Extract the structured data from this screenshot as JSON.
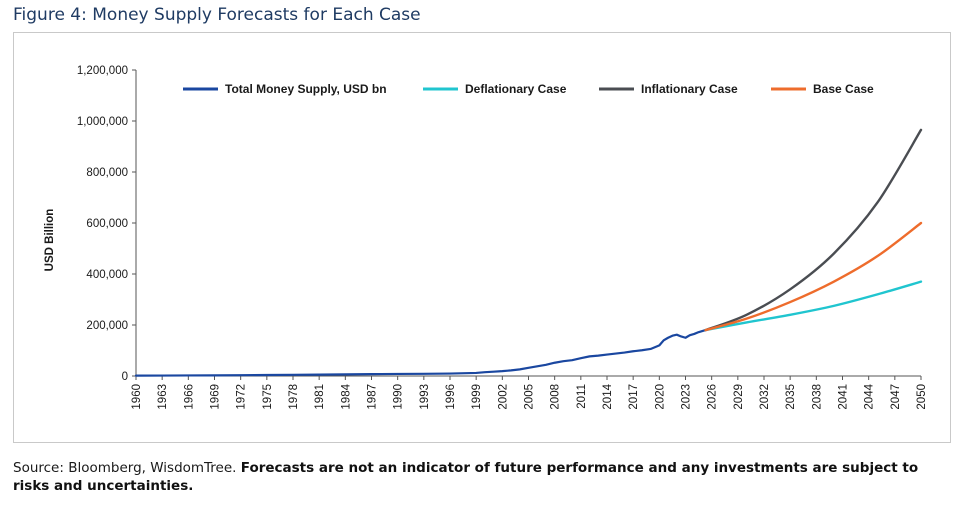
{
  "figure_title": "Figure 4: Money Supply Forecasts for Each Case",
  "footer": {
    "source": "Source: Bloomberg, WisdomTree. ",
    "disclaimer": "Forecasts are not an indicator of future performance and any investments are subject to risks and uncertainties."
  },
  "chart_data": {
    "type": "line",
    "ylabel": "USD Billion",
    "xlabel": "",
    "ylim": [
      0,
      1200000
    ],
    "xlim": [
      1960,
      2050
    ],
    "y_ticks": [
      0,
      200000,
      400000,
      600000,
      800000,
      1000000,
      1200000
    ],
    "y_tick_labels": [
      "0",
      "200,000",
      "400,000",
      "600,000",
      "800,000",
      "1,000,000",
      "1,200,000"
    ],
    "x_ticks": [
      "1960",
      "1963",
      "1966",
      "1969",
      "1972",
      "1975",
      "1978",
      "1981",
      "1984",
      "1987",
      "1990",
      "1993",
      "1996",
      "1999",
      "2002",
      "2005",
      "2008",
      "2011",
      "2014",
      "2017",
      "2020",
      "2023",
      "2026",
      "2029",
      "2032",
      "2035",
      "2038",
      "2041",
      "2044",
      "2047",
      "2050"
    ],
    "grid": false,
    "legend_position": "top",
    "series": [
      {
        "name": "Total Money Supply, USD bn",
        "color": "#1a47a0",
        "x": [
          1960,
          1963,
          1966,
          1969,
          1972,
          1975,
          1978,
          1981,
          1984,
          1987,
          1990,
          1993,
          1996,
          1999,
          2000,
          2001,
          2002,
          2003,
          2004,
          2005,
          2006,
          2007,
          2008,
          2009,
          2010,
          2011,
          2012,
          2013,
          2014,
          2015,
          2016,
          2017,
          2018,
          2019,
          2020,
          2020.5,
          2021,
          2021.5,
          2022,
          2022.5,
          2023,
          2023.5,
          2024,
          2024.5,
          2025.3
        ],
        "values": [
          1500,
          1800,
          2200,
          2600,
          3200,
          3900,
          4600,
          5400,
          6300,
          7200,
          8000,
          8500,
          9500,
          12000,
          15000,
          17000,
          19000,
          22000,
          26000,
          32000,
          38000,
          44000,
          52000,
          58000,
          62000,
          70000,
          77000,
          80000,
          84000,
          88000,
          92000,
          97000,
          101000,
          106000,
          120000,
          140000,
          150000,
          158000,
          162000,
          155000,
          150000,
          160000,
          165000,
          172000,
          180000
        ]
      },
      {
        "name": "Deflationary Case",
        "color": "#20c5cf",
        "x": [
          2025.3,
          2030,
          2035,
          2040,
          2045,
          2050
        ],
        "values": [
          180000,
          210000,
          240000,
          275000,
          320000,
          370000
        ]
      },
      {
        "name": "Inflationary Case",
        "color": "#4a4d52",
        "x": [
          2025.3,
          2030,
          2035,
          2040,
          2045,
          2050
        ],
        "values": [
          180000,
          240000,
          340000,
          480000,
          680000,
          965000
        ]
      },
      {
        "name": "Base Case",
        "color": "#ee6c2c",
        "x": [
          2025.3,
          2030,
          2035,
          2040,
          2045,
          2050
        ],
        "values": [
          180000,
          225000,
          290000,
          370000,
          470000,
          600000
        ]
      }
    ]
  }
}
